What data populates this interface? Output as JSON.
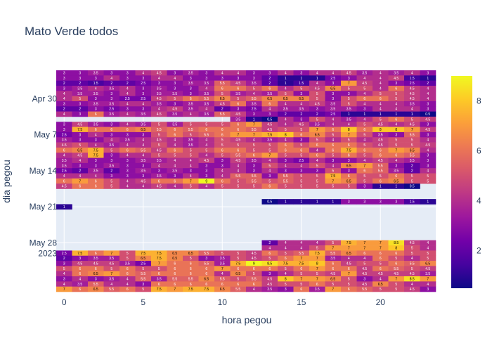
{
  "chart_data": {
    "type": "heatmap",
    "title": "Mato Verde todos",
    "xlabel": "hora pegou",
    "ylabel": "dia pegou",
    "x_tick_labels": [
      "0",
      "5",
      "10",
      "15",
      "20"
    ],
    "x_tick_values": [
      0,
      5,
      10,
      15,
      20
    ],
    "x_range": [
      -0.5,
      23.5
    ],
    "y_tick_labels": [
      "Apr 30",
      "May 7",
      "May 14",
      "May 21",
      "May 28"
    ],
    "y_tick_year": "2023",
    "colorbar_ticks": [
      2,
      4,
      6,
      8
    ],
    "z_range": [
      0.5,
      9
    ],
    "colorscale": [
      "#0d0887",
      "#46039f",
      "#7201a8",
      "#9c179e",
      "#bd3786",
      "#d8576b",
      "#ed7953",
      "#fb9f3a",
      "#fdca26",
      "#f0f921"
    ],
    "plot_background": "#e5ecf6",
    "days": [
      "2023-04-25",
      "2023-04-26",
      "2023-04-27",
      "2023-04-28",
      "2023-04-29",
      "2023-04-30",
      "2023-05-01",
      "2023-05-02",
      "2023-05-03",
      "2023-05-04",
      "2023-05-05",
      "2023-05-06",
      "2023-05-07",
      "2023-05-08",
      "2023-05-09",
      "2023-05-10",
      "2023-05-11",
      "2023-05-12",
      "2023-05-13",
      "2023-05-14",
      "2023-05-15",
      "2023-05-16",
      "2023-05-17",
      "2023-05-18",
      "2023-05-19",
      "2023-05-20",
      "2023-05-21",
      "2023-05-22",
      "2023-05-23",
      "2023-05-24",
      "2023-05-25",
      "2023-05-26",
      "2023-05-27",
      "2023-05-28",
      "2023-05-29",
      "2023-05-30",
      "2023-05-31",
      "2023-06-01",
      "2023-06-02",
      "2023-06-03",
      "2023-06-04",
      "2023-06-05",
      "2023-06-06"
    ],
    "z": [
      [
        3,
        3,
        3.5,
        3,
        3,
        4,
        4.5,
        3,
        3.5,
        3,
        4,
        4,
        3,
        3,
        4,
        3,
        4,
        4,
        4.5,
        3.5,
        4,
        3.5,
        4,
        3
      ],
      [
        3,
        3,
        3,
        4,
        3,
        3,
        4,
        4,
        3,
        3,
        3,
        3,
        3,
        2,
        1,
        1,
        1,
        2.5,
        3,
        4,
        4,
        4.5,
        1.5,
        1
      ],
      [
        2,
        2,
        1.5,
        2,
        2,
        2.5,
        3,
        3,
        3.5,
        3.5,
        5.5,
        4.5,
        3.5,
        2,
        1,
        1.5,
        4,
        3,
        7,
        4.5,
        4,
        3,
        2.5,
        2
      ],
      [
        3,
        3.5,
        4,
        3.5,
        4,
        3,
        3.5,
        3,
        3,
        4,
        6,
        6,
        5,
        6,
        4,
        5,
        4.5,
        6.5,
        5,
        5,
        4,
        6,
        4.5,
        4
      ],
      [
        4,
        3.5,
        3.5,
        3,
        4,
        3,
        3.5,
        3.5,
        3,
        3.5,
        5,
        3.5,
        4,
        3.5,
        5,
        3,
        5,
        3,
        3,
        4,
        5,
        5,
        4.5,
        4
      ],
      [
        4,
        5,
        3,
        3,
        2.5,
        2.5,
        4.5,
        5,
        6,
        5.5,
        6.5,
        5,
        5.5,
        6.5,
        6.5,
        6.5,
        5,
        3,
        5,
        6,
        6,
        5,
        4.5,
        4
      ],
      [
        3,
        3,
        3.5,
        3.5,
        4,
        4,
        3.5,
        3,
        3.5,
        3.5,
        4.5,
        6,
        3.5,
        6,
        4,
        4,
        4.5,
        3.5,
        5,
        4,
        4,
        4,
        3.5,
        3
      ],
      [
        2,
        2,
        3,
        2.5,
        3,
        3,
        4,
        4.5,
        3.5,
        4,
        2,
        3,
        2.5,
        4,
        3.5,
        3.5,
        3,
        3.5,
        3.5,
        3,
        4,
        4,
        4,
        3
      ],
      [
        4,
        3,
        6,
        3.5,
        4,
        3.5,
        4.5,
        3.5,
        4,
        3.5,
        5.5,
        4.5,
        3,
        3,
        2,
        2,
        2,
        2.5,
        1,
        1,
        1,
        1,
        1,
        0.5
      ],
      [
        null,
        null,
        null,
        null,
        null,
        null,
        null,
        null,
        null,
        null,
        null,
        3.5,
        1,
        0.5,
        4,
        3,
        5,
        4,
        3.5,
        4,
        5,
        6,
        5,
        4.5
      ],
      [
        3,
        4.5,
        3.5,
        3,
        4,
        3.5,
        5,
        3.5,
        5,
        5,
        5,
        6,
        7,
        4.5,
        4,
        4.5,
        3.5,
        4,
        4,
        5,
        4.5,
        4,
        4.5,
        3
      ],
      [
        3,
        7.5,
        6,
        6,
        6,
        6.5,
        5.5,
        6,
        5.5,
        6,
        6,
        6,
        5.5,
        4.5,
        5,
        5,
        7,
        6,
        8,
        6,
        8,
        8,
        7,
        4.5
      ],
      [
        2.5,
        3,
        4,
        3,
        3,
        3,
        5,
        6,
        5,
        5.5,
        6,
        7,
        7,
        7.5,
        8,
        6,
        6.5,
        5,
        7,
        5,
        3.5,
        3,
        5.5,
        3
      ],
      [
        3.5,
        3,
        3,
        4,
        3.5,
        4,
        4.5,
        4,
        3.5,
        4,
        5,
        4.5,
        4,
        3.5,
        4,
        3,
        5,
        4,
        5,
        4,
        4.5,
        5,
        5,
        4
      ],
      [
        4.5,
        5,
        4,
        3.5,
        4,
        4,
        5,
        4,
        3.5,
        4,
        5,
        5,
        5,
        5,
        6,
        5,
        6,
        6,
        6,
        5,
        4.5,
        5,
        5,
        4.5
      ],
      [
        6,
        6.5,
        7.5,
        5,
        6,
        5.5,
        4.5,
        6,
        5,
        5,
        6,
        6,
        5,
        5,
        6,
        6,
        4,
        6,
        7.5,
        6,
        6,
        7,
        6.5,
        4
      ],
      [
        4,
        4.5,
        7.5,
        3,
        4,
        4,
        5,
        5,
        5,
        4,
        5,
        5.5,
        6,
        7,
        5,
        5,
        6,
        5,
        6,
        5,
        6,
        6,
        5.5,
        3
      ],
      [
        3.5,
        4,
        3,
        3,
        3,
        3.5,
        3.5,
        4,
        4,
        4.5,
        3,
        4.5,
        3.5,
        4,
        3,
        2.5,
        4,
        3,
        3,
        4,
        4.5,
        4,
        3.5,
        3
      ],
      [
        3.5,
        3,
        3,
        3.5,
        3,
        3,
        4,
        4,
        4,
        3,
        3,
        4,
        3,
        5,
        4,
        4,
        5,
        4,
        6.5,
        7,
        5.5,
        3,
        2,
        3
      ],
      [
        2.5,
        2,
        3.5,
        2,
        3,
        3.5,
        3,
        3.5,
        3,
        3,
        4,
        4,
        3,
        4,
        3,
        3,
        3,
        5,
        3,
        6,
        5.5,
        3.5,
        2,
        4
      ],
      [
        4,
        4,
        4,
        3,
        3,
        3,
        3.5,
        3,
        4,
        3,
        4,
        5.5,
        5.5,
        3,
        5.5,
        5,
        5,
        7.5,
        6,
        5,
        5,
        6,
        5,
        5
      ],
      [
        6,
        7,
        6,
        5,
        4,
        4.5,
        6,
        6,
        7,
        9,
        6,
        5,
        5.5,
        5,
        5.5,
        5,
        5,
        7,
        6.5,
        5,
        6,
        6.5,
        5,
        5
      ],
      [
        4.5,
        6,
        6,
        5,
        4,
        4,
        4.5,
        4,
        5,
        4,
        5,
        5,
        5,
        6,
        5,
        5,
        5,
        5,
        5,
        3,
        1,
        1,
        0.5,
        null
      ],
      [
        null,
        null,
        null,
        null,
        null,
        null,
        null,
        null,
        null,
        null,
        null,
        null,
        null,
        null,
        null,
        null,
        null,
        null,
        null,
        null,
        null,
        null,
        null,
        null
      ],
      [
        null,
        null,
        null,
        null,
        null,
        null,
        null,
        null,
        null,
        null,
        null,
        null,
        null,
        null,
        null,
        null,
        null,
        null,
        null,
        null,
        null,
        null,
        null,
        null
      ],
      [
        null,
        null,
        null,
        null,
        null,
        null,
        null,
        null,
        null,
        null,
        null,
        null,
        null,
        0.5,
        1,
        1,
        1,
        1,
        3,
        3,
        3,
        3,
        1.5,
        1
      ],
      [
        1,
        null,
        null,
        null,
        null,
        null,
        null,
        null,
        null,
        null,
        null,
        null,
        null,
        null,
        null,
        null,
        null,
        null,
        null,
        null,
        null,
        null,
        null,
        null
      ],
      [
        null,
        null,
        null,
        null,
        null,
        null,
        null,
        null,
        null,
        null,
        null,
        null,
        null,
        null,
        null,
        null,
        null,
        null,
        null,
        null,
        null,
        null,
        null,
        null
      ],
      [
        null,
        null,
        null,
        null,
        null,
        null,
        null,
        null,
        null,
        null,
        null,
        null,
        null,
        null,
        null,
        null,
        null,
        null,
        null,
        null,
        null,
        null,
        null,
        null
      ],
      [
        null,
        null,
        null,
        null,
        null,
        null,
        null,
        null,
        null,
        null,
        null,
        null,
        null,
        null,
        null,
        null,
        null,
        null,
        null,
        null,
        null,
        null,
        null,
        null
      ],
      [
        null,
        null,
        null,
        null,
        null,
        null,
        null,
        null,
        null,
        null,
        null,
        null,
        null,
        null,
        null,
        null,
        null,
        null,
        null,
        null,
        null,
        null,
        null,
        null
      ],
      [
        null,
        null,
        null,
        null,
        null,
        null,
        null,
        null,
        null,
        null,
        null,
        null,
        null,
        null,
        null,
        null,
        null,
        null,
        null,
        null,
        null,
        null,
        null,
        null
      ],
      [
        null,
        null,
        null,
        null,
        null,
        null,
        null,
        null,
        null,
        null,
        null,
        null,
        null,
        null,
        null,
        null,
        null,
        null,
        null,
        null,
        null,
        null,
        null,
        null
      ],
      [
        null,
        null,
        null,
        null,
        null,
        null,
        null,
        null,
        null,
        null,
        null,
        null,
        null,
        2,
        4,
        4,
        4,
        5,
        7.5,
        7,
        7,
        8.5,
        4.5,
        4
      ],
      [
        null,
        null,
        null,
        null,
        null,
        null,
        null,
        null,
        null,
        null,
        null,
        null,
        null,
        4,
        4,
        4,
        5,
        7,
        7,
        7,
        7,
        8,
        5,
        4
      ],
      [
        2.5,
        7.5,
        6,
        7,
        5,
        7.5,
        7.5,
        6.5,
        6.5,
        5.5,
        5,
        5,
        4.5,
        6,
        5,
        5.5,
        7.5,
        5.5,
        6.5,
        6,
        6,
        6,
        5,
        5
      ],
      [
        2,
        3,
        3.5,
        3.5,
        5,
        6.5,
        7.5,
        6.5,
        5,
        3,
        3.5,
        5,
        4.5,
        5,
        6,
        7,
        7,
        3.5,
        4,
        4,
        6,
        5,
        4,
        5
      ],
      [
        3,
        4.5,
        4.5,
        4.5,
        3.5,
        2.5,
        7,
        6,
        6,
        5.5,
        3.5,
        7.5,
        9,
        8.5,
        7.5,
        7.5,
        8,
        6,
        4.5,
        5,
        5,
        6,
        5.5,
        6.5
      ],
      [
        5,
        6,
        6,
        5,
        6,
        5,
        5,
        6,
        6,
        6,
        7,
        6,
        6,
        6,
        5,
        6,
        7,
        6,
        6,
        4.5,
        6,
        5.5,
        5,
        4.5
      ],
      [
        4,
        6,
        6.5,
        7,
        6,
        5.5,
        6,
        6,
        6,
        6,
        4,
        6.5,
        5,
        3,
        4,
        5,
        5,
        4.5,
        7,
        4.5,
        4.5,
        4.5,
        4.5,
        3.5
      ],
      [
        3,
        4,
        3,
        3.5,
        4,
        5.5,
        3.5,
        5.5,
        5.5,
        6.5,
        5.5,
        5,
        5.5,
        4.5,
        8,
        7,
        7,
        6.5,
        5,
        3,
        4,
        7,
        8.5,
        7
      ],
      [
        4,
        3.5,
        5.5,
        4,
        4,
        3,
        6,
        6,
        6,
        6,
        6,
        6,
        6,
        4.5,
        5,
        5,
        6,
        5,
        5,
        4.5,
        6.5,
        5,
        4,
        4
      ],
      [
        7,
        6,
        6.5,
        5.5,
        6,
        5,
        7.5,
        7,
        7.5,
        7.5,
        6.5,
        5.5,
        4,
        3.5,
        3,
        6,
        3.5,
        7,
        6,
        5.5,
        5,
        5,
        4.5,
        3
      ]
    ]
  }
}
